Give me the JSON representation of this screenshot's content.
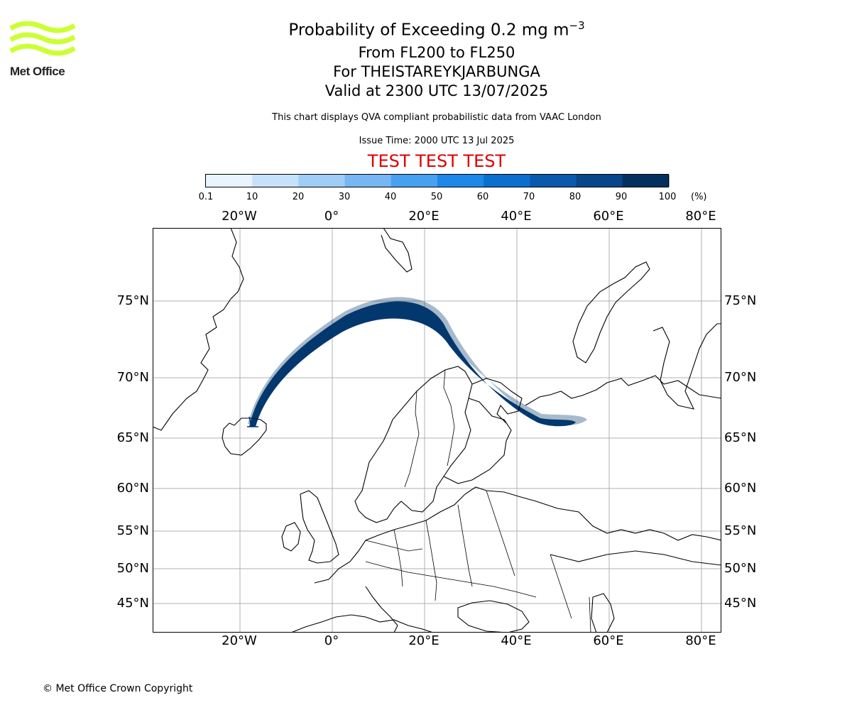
{
  "logo": {
    "text": "Met Office",
    "color": "#ccff33"
  },
  "title": {
    "line1": "Probability of Exceeding 0.2 mg m",
    "line1_exponent": "−3",
    "line2": "From FL200 to FL250",
    "line3": "For THEISTAREYKJARBUNGA",
    "line4": "Valid at 2300 UTC 13/07/2025"
  },
  "subtitle": "This chart displays QVA compliant probabilistic data from VAAC London",
  "issue_time": "Issue Time: 2000 UTC 13 Jul 2025",
  "test_banner": {
    "text": "TEST TEST TEST",
    "color": "#dd0000"
  },
  "colorbar": {
    "ticks": [
      "0.1",
      "10",
      "20",
      "30",
      "40",
      "50",
      "60",
      "70",
      "80",
      "90",
      "100"
    ],
    "unit": "(%)",
    "colors": [
      "#eaf4ff",
      "#c6e2fb",
      "#9fcdf6",
      "#75b6f3",
      "#48a0f0",
      "#1e88ea",
      "#0b6fd0",
      "#0959ad",
      "#07468a",
      "#03305f"
    ]
  },
  "map": {
    "lon_labels": [
      "20°W",
      "0°",
      "20°E",
      "40°E",
      "60°E",
      "80°E"
    ],
    "lat_labels": [
      "75°N",
      "70°N",
      "65°N",
      "60°N",
      "55°N",
      "50°N",
      "45°N"
    ],
    "plume_color": "#02386e",
    "volcano_marker": "volcano-triangle"
  },
  "copyright": "© Met Office Crown Copyright"
}
